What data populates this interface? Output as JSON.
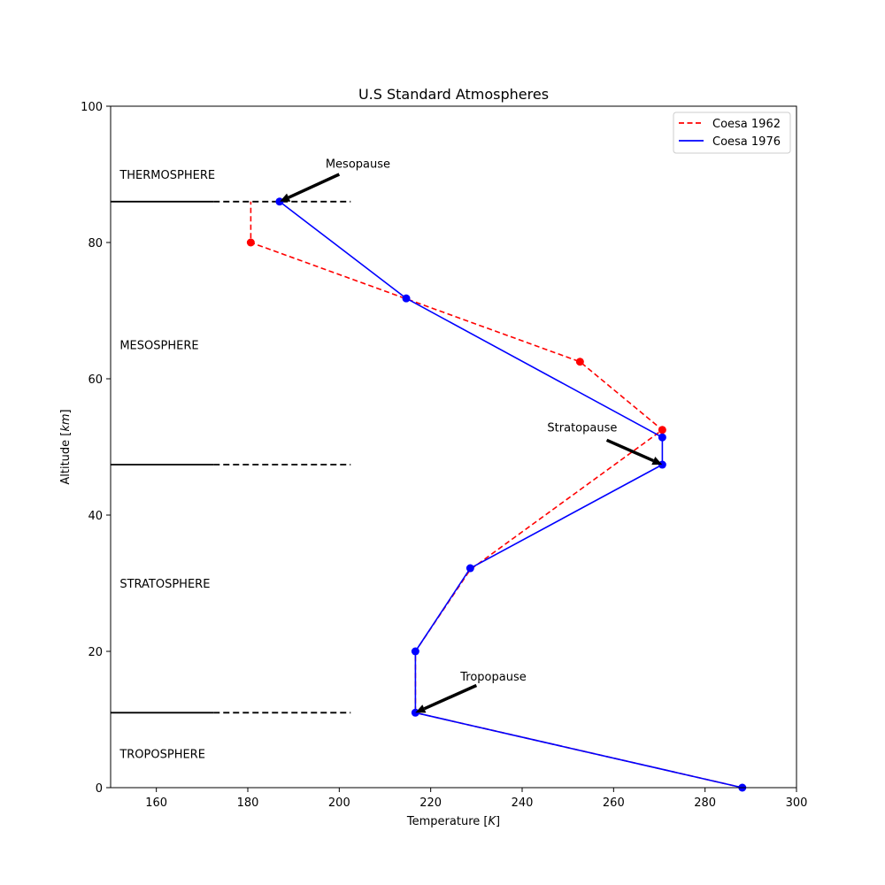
{
  "chart_data": {
    "type": "line",
    "title": "U.S Standard Atmospheres",
    "xlabel": "Temperature [K]",
    "ylabel": "Altitude [km]",
    "xlim": [
      150,
      300
    ],
    "ylim": [
      0,
      100
    ],
    "xticks": [
      "160",
      "180",
      "200",
      "220",
      "240",
      "260",
      "280",
      "300"
    ],
    "yticks": [
      "0",
      "20",
      "40",
      "60",
      "80",
      "100"
    ],
    "xtick_values": [
      160,
      180,
      200,
      220,
      240,
      260,
      280,
      300
    ],
    "ytick_values": [
      0,
      20,
      40,
      60,
      80,
      100
    ],
    "legend_position": "top-right",
    "grid": false,
    "series": [
      {
        "name": "Coesa 1962",
        "color": "#ff0000",
        "style": "dashed",
        "x": [
          288.15,
          216.65,
          216.65,
          228.65,
          270.65,
          252.65,
          180.65,
          180.65
        ],
        "y": [
          0,
          11,
          20,
          32,
          52.5,
          62.5,
          80,
          86
        ],
        "markers": [
          {
            "x": 252.65,
            "y": 62.5
          },
          {
            "x": 270.65,
            "y": 52.5
          },
          {
            "x": 180.65,
            "y": 80
          }
        ]
      },
      {
        "name": "Coesa 1976",
        "color": "#0000ff",
        "style": "solid",
        "x": [
          288.15,
          216.65,
          216.65,
          228.65,
          270.65,
          270.65,
          214.65,
          186.95
        ],
        "y": [
          0,
          11,
          20,
          32.2,
          47.4,
          51.4,
          71.8,
          86
        ],
        "markers": [
          {
            "x": 288.15,
            "y": 0
          },
          {
            "x": 216.65,
            "y": 11
          },
          {
            "x": 216.65,
            "y": 20
          },
          {
            "x": 228.65,
            "y": 32.2
          },
          {
            "x": 270.65,
            "y": 47.4
          },
          {
            "x": 270.65,
            "y": 51.4
          },
          {
            "x": 214.65,
            "y": 71.8
          },
          {
            "x": 186.95,
            "y": 86
          }
        ]
      }
    ],
    "boundaries": [
      {
        "y": 11,
        "solid_x": [
          150,
          172.5
        ],
        "dashed_x": [
          172.5,
          202.5
        ]
      },
      {
        "y": 47.4,
        "solid_x": [
          150,
          172.5
        ],
        "dashed_x": [
          172.5,
          202.5
        ]
      },
      {
        "y": 86,
        "solid_x": [
          150,
          172.5
        ],
        "dashed_x": [
          172.5,
          202.5
        ]
      }
    ],
    "regions": [
      {
        "label": "THERMOSPHERE",
        "x": 152,
        "y": 90
      },
      {
        "label": "MESOSPHERE",
        "x": 152,
        "y": 65
      },
      {
        "label": "STRATOSPHERE",
        "x": 152,
        "y": 30
      },
      {
        "label": "TROPOSPHERE",
        "x": 152,
        "y": 5
      }
    ],
    "annotations": [
      {
        "label": "Mesopause",
        "text_x": 197,
        "text_y": 91,
        "arrow_from": [
          200,
          90
        ],
        "arrow_to": [
          187,
          86
        ]
      },
      {
        "label": "Stratopause",
        "text_x": 245.5,
        "text_y": 52.3,
        "arrow_from": [
          258.5,
          51
        ],
        "arrow_to": [
          270.65,
          47.4
        ]
      },
      {
        "label": "Tropopause",
        "text_x": 226.5,
        "text_y": 15.7,
        "arrow_from": [
          230,
          15
        ],
        "arrow_to": [
          216.65,
          11
        ]
      }
    ]
  }
}
